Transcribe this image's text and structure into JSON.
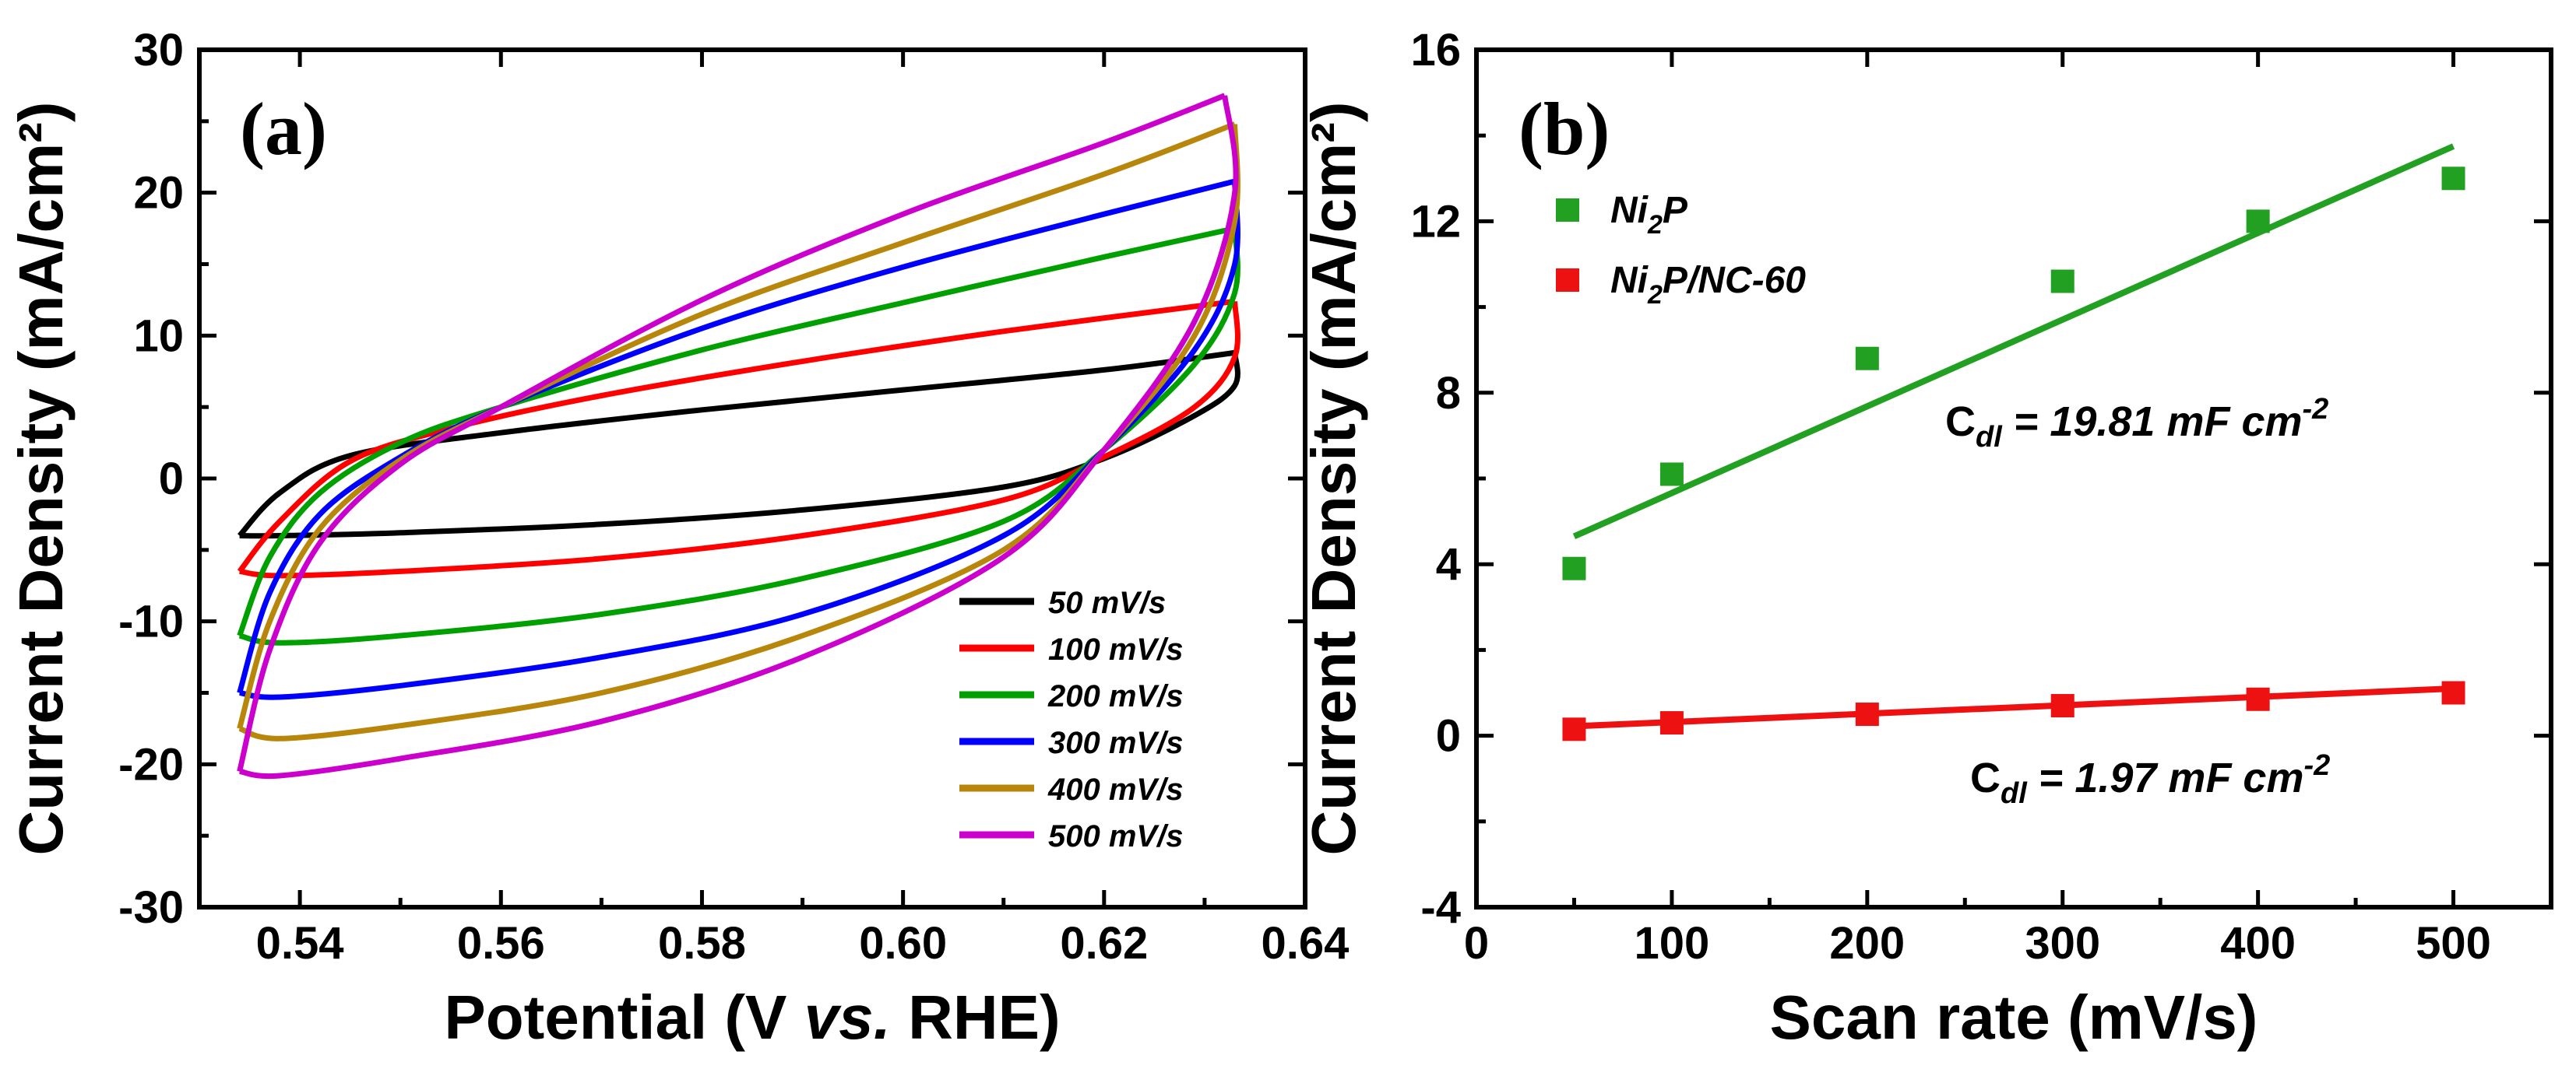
{
  "chart_data": [
    {
      "panel_label": "(a)",
      "type": "line",
      "xlabel_prefix": "Potential (V ",
      "xlabel_italic": "vs.",
      "xlabel_suffix": " RHE)",
      "ylabel": "Current Density (mA/cm²)",
      "xlim": [
        0.53,
        0.64
      ],
      "ylim": [
        -30,
        30
      ],
      "xticks": [
        "0.54",
        "0.56",
        "0.58",
        "0.60",
        "0.62",
        "0.64"
      ],
      "xtick_values": [
        0.54,
        0.56,
        0.58,
        0.6,
        0.62,
        0.64
      ],
      "yticks": [
        "-30",
        "-20",
        "-10",
        "0",
        "10",
        "20",
        "30"
      ],
      "ytick_values": [
        -30,
        -20,
        -10,
        0,
        10,
        20,
        30
      ],
      "legend_position": "bottom-right",
      "series": [
        {
          "name": "50 mV/s",
          "color": "#000000",
          "anodic": [
            [
              0.534,
              -4
            ],
            [
              0.538,
              -1
            ],
            [
              0.545,
              1.6
            ],
            [
              0.56,
              3.2
            ],
            [
              0.58,
              4.8
            ],
            [
              0.6,
              6.2
            ],
            [
              0.62,
              7.6
            ],
            [
              0.633,
              8.8
            ]
          ],
          "cathodic": [
            [
              0.633,
              8.8
            ],
            [
              0.633,
              6.5
            ],
            [
              0.629,
              4.4
            ],
            [
              0.62,
              1.4
            ],
            [
              0.61,
              -0.6
            ],
            [
              0.59,
              -2.2
            ],
            [
              0.57,
              -3.2
            ],
            [
              0.55,
              -3.8
            ],
            [
              0.538,
              -4
            ],
            [
              0.534,
              -4
            ]
          ]
        },
        {
          "name": "100 mV/s",
          "color": "#ff0000",
          "anodic": [
            [
              0.534,
              -6.5
            ],
            [
              0.538,
              -3
            ],
            [
              0.545,
              1.2
            ],
            [
              0.555,
              3.5
            ],
            [
              0.57,
              5.8
            ],
            [
              0.59,
              8.2
            ],
            [
              0.61,
              10.3
            ],
            [
              0.633,
              12.4
            ]
          ],
          "cathodic": [
            [
              0.633,
              12.4
            ],
            [
              0.633,
              8.5
            ],
            [
              0.629,
              5
            ],
            [
              0.62,
              1.5
            ],
            [
              0.61,
              -1.5
            ],
            [
              0.59,
              -4
            ],
            [
              0.57,
              -5.6
            ],
            [
              0.55,
              -6.5
            ],
            [
              0.538,
              -6.8
            ],
            [
              0.534,
              -6.5
            ]
          ]
        },
        {
          "name": "200 mV/s",
          "color": "#00a000",
          "anodic": [
            [
              0.534,
              -11
            ],
            [
              0.537,
              -5.5
            ],
            [
              0.542,
              -1
            ],
            [
              0.55,
              2.5
            ],
            [
              0.56,
              5
            ],
            [
              0.58,
              9
            ],
            [
              0.6,
              12.3
            ],
            [
              0.62,
              15.5
            ],
            [
              0.633,
              17.5
            ]
          ],
          "cathodic": [
            [
              0.633,
              17.5
            ],
            [
              0.633,
              13
            ],
            [
              0.629,
              8
            ],
            [
              0.62,
              2
            ],
            [
              0.61,
              -3
            ],
            [
              0.59,
              -7
            ],
            [
              0.57,
              -9.5
            ],
            [
              0.55,
              -11
            ],
            [
              0.538,
              -11.5
            ],
            [
              0.534,
              -11
            ]
          ]
        },
        {
          "name": "300 mV/s",
          "color": "#0000ff",
          "anodic": [
            [
              0.534,
              -15
            ],
            [
              0.537,
              -8
            ],
            [
              0.542,
              -2.5
            ],
            [
              0.55,
              1.5
            ],
            [
              0.56,
              5
            ],
            [
              0.58,
              10.5
            ],
            [
              0.6,
              14.8
            ],
            [
              0.62,
              18.5
            ],
            [
              0.633,
              20.8
            ]
          ],
          "cathodic": [
            [
              0.633,
              20.8
            ],
            [
              0.633,
              15
            ],
            [
              0.629,
              9
            ],
            [
              0.62,
              2
            ],
            [
              0.61,
              -4
            ],
            [
              0.59,
              -9.5
            ],
            [
              0.57,
              -12.5
            ],
            [
              0.55,
              -14.5
            ],
            [
              0.538,
              -15.3
            ],
            [
              0.534,
              -15
            ]
          ]
        },
        {
          "name": "400 mV/s",
          "color": "#b8860b",
          "anodic": [
            [
              0.534,
              -17.5
            ],
            [
              0.537,
              -10
            ],
            [
              0.542,
              -3.5
            ],
            [
              0.55,
              1.3
            ],
            [
              0.56,
              5
            ],
            [
              0.58,
              11.5
            ],
            [
              0.6,
              16.5
            ],
            [
              0.62,
              21.3
            ],
            [
              0.633,
              24.8
            ]
          ],
          "cathodic": [
            [
              0.633,
              24.8
            ],
            [
              0.633,
              18
            ],
            [
              0.629,
              10
            ],
            [
              0.62,
              2
            ],
            [
              0.61,
              -5
            ],
            [
              0.59,
              -11
            ],
            [
              0.57,
              -15
            ],
            [
              0.55,
              -17.3
            ],
            [
              0.538,
              -18.2
            ],
            [
              0.534,
              -17.5
            ]
          ]
        },
        {
          "name": "500 mV/s",
          "color": "#cc00cc",
          "anodic": [
            [
              0.534,
              -20.5
            ],
            [
              0.537,
              -12
            ],
            [
              0.542,
              -4.5
            ],
            [
              0.55,
              1
            ],
            [
              0.56,
              5
            ],
            [
              0.58,
              12.5
            ],
            [
              0.6,
              18.5
            ],
            [
              0.62,
              23.5
            ],
            [
              0.632,
              26.8
            ]
          ],
          "cathodic": [
            [
              0.632,
              26.8
            ],
            [
              0.633,
              20
            ],
            [
              0.629,
              11
            ],
            [
              0.62,
              2
            ],
            [
              0.61,
              -5.5
            ],
            [
              0.59,
              -12.5
            ],
            [
              0.57,
              -17
            ],
            [
              0.55,
              -19.6
            ],
            [
              0.538,
              -20.8
            ],
            [
              0.534,
              -20.5
            ]
          ]
        }
      ]
    },
    {
      "panel_label": "(b)",
      "type": "scatter",
      "xlabel": "Scan rate (mV/s)",
      "ylabel": "Current Density (mA/cm²)",
      "xlim": [
        0,
        550
      ],
      "ylim": [
        -4,
        16
      ],
      "xticks": [
        "0",
        "100",
        "200",
        "300",
        "400",
        "500"
      ],
      "xtick_values": [
        0,
        100,
        200,
        300,
        400,
        500
      ],
      "yticks": [
        "-4",
        "0",
        "4",
        "8",
        "12",
        "16"
      ],
      "ytick_values": [
        -4,
        0,
        4,
        8,
        12,
        16
      ],
      "legend_position": "top-left",
      "x": [
        50,
        100,
        200,
        300,
        400,
        500
      ],
      "series": [
        {
          "name_base": "Ni",
          "name_sub": "2",
          "name_rest": "P",
          "color": "#22a022",
          "values": [
            3.9,
            6.1,
            8.8,
            10.6,
            12.0,
            13.0
          ],
          "fit_start": [
            50,
            4.65
          ],
          "fit_end": [
            500,
            13.75
          ]
        },
        {
          "name_base": "Ni",
          "name_sub": "2",
          "name_rest": "P/NC-60",
          "color": "#ee1111",
          "values": [
            0.15,
            0.3,
            0.5,
            0.7,
            0.85,
            1.0
          ],
          "fit_start": [
            50,
            0.22
          ],
          "fit_end": [
            500,
            1.1
          ]
        }
      ],
      "annotations": [
        {
          "c": "C",
          "sub": "dl",
          "text": " = 19.81 mF cm",
          "sup": "-2"
        },
        {
          "c": "C",
          "sub": "dl",
          "text": " = 1.97 mF cm",
          "sup": "-2"
        }
      ]
    }
  ]
}
